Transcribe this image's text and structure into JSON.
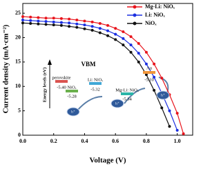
{
  "chart_data": {
    "type": "line",
    "x_label": "Voltage (V)",
    "y_label": "Current density (mA·cm⁻²)",
    "x": [
      0,
      0.05,
      0.1,
      0.15,
      0.2,
      0.25,
      0.3,
      0.35,
      0.4,
      0.45,
      0.5,
      0.55,
      0.6,
      0.65,
      0.7,
      0.75,
      0.8,
      0.85,
      0.9,
      0.95,
      1.0,
      1.04
    ],
    "series": [
      {
        "name": "Mg-Li: NiOₓ",
        "color": "#e8141c",
        "values": [
          24.3,
          24.2,
          24.1,
          24.0,
          24.0,
          23.9,
          23.8,
          23.6,
          23.4,
          23.2,
          22.9,
          22.5,
          21.9,
          21.2,
          20.2,
          18.8,
          17.0,
          14.6,
          11.7,
          8.3,
          4.5,
          0.3
        ]
      },
      {
        "name": "Li: NiOₓ",
        "color": "#1a2ee0",
        "values": [
          23.6,
          23.5,
          23.4,
          23.3,
          23.2,
          23.1,
          23.0,
          22.8,
          22.6,
          22.3,
          21.9,
          21.4,
          20.7,
          19.8,
          18.5,
          16.8,
          14.6,
          11.9,
          8.6,
          5.0,
          1.0,
          null
        ]
      },
      {
        "name": "NiOₓ",
        "color": "#111111",
        "values": [
          23.0,
          22.9,
          22.8,
          22.7,
          22.6,
          22.5,
          22.3,
          22.1,
          21.8,
          21.5,
          21.0,
          20.4,
          19.6,
          18.5,
          17.0,
          15.0,
          12.4,
          9.2,
          5.6,
          1.8,
          null,
          null
        ]
      }
    ],
    "xlim": [
      0,
      1.1
    ],
    "ylim": [
      0,
      27
    ],
    "xticks": [
      {
        "value": 0,
        "label": "0.0"
      },
      0.2,
      0.4,
      0.6,
      0.8,
      {
        "value": 1,
        "label": "1.0"
      }
    ],
    "yticks": [
      0,
      5,
      10,
      15,
      20,
      25
    ],
    "legend": "upper right",
    "inset": {
      "title": "VBM",
      "axis_label": "Energy levels (eV)",
      "carrier_label": "h⁺",
      "levels": [
        {
          "name": "perovskite",
          "value": -5.4,
          "value_label": "-5.40",
          "color": "#d9534f"
        },
        {
          "name": "NiOₓ",
          "value": -5.28,
          "value_label": "-5.28",
          "color": "#6ab04c"
        },
        {
          "name": "Li: NiOₓ",
          "value": -5.32,
          "value_label": "-5.32",
          "color": "#3fa7d6"
        },
        {
          "name": "Mg-Li: NiOₓ",
          "value": -5.34,
          "value_label": "-5.34",
          "color": "#2bb5a8"
        },
        {
          "name": "Au",
          "value": -5.1,
          "value_label": "-5.10",
          "color": "#f0953a"
        }
      ]
    }
  }
}
